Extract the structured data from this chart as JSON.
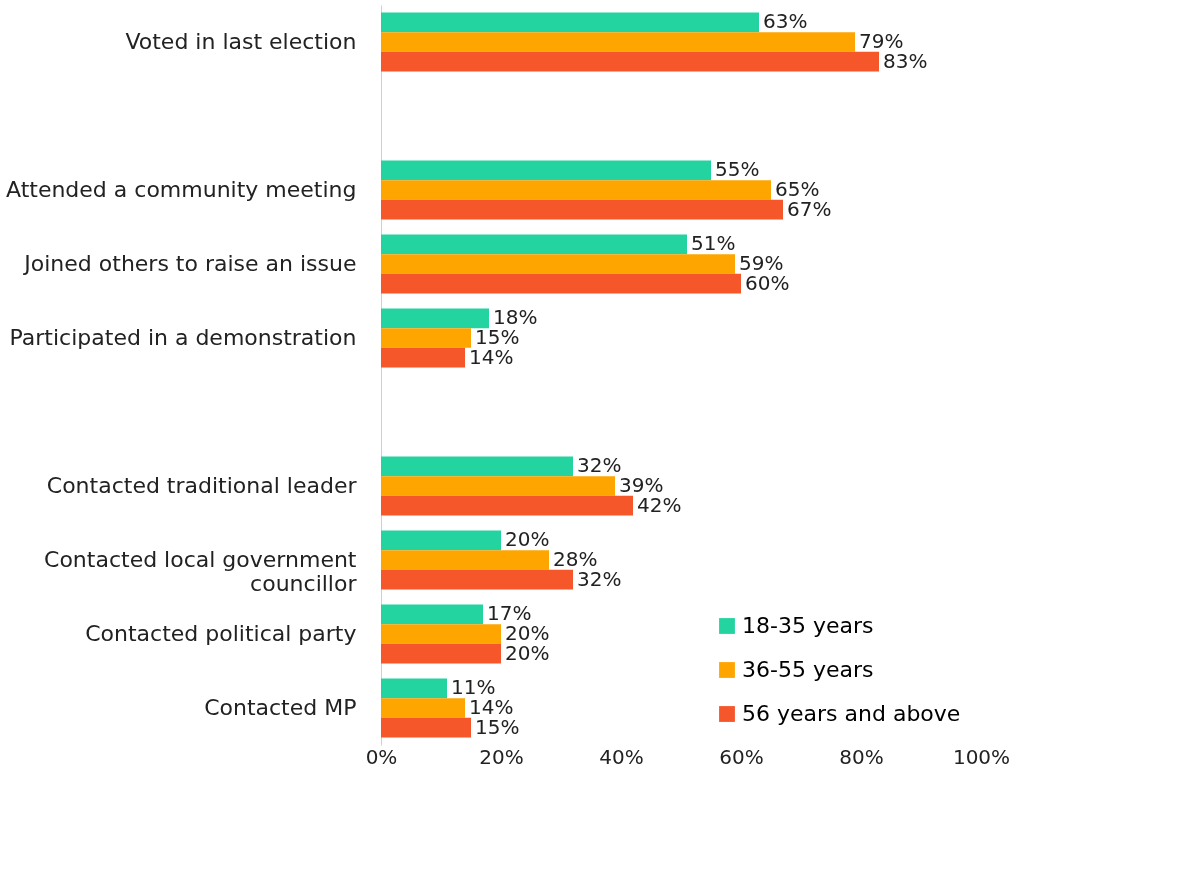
{
  "chart_data": {
    "type": "bar",
    "orientation": "horizontal",
    "categories": [
      "Voted in last election",
      null,
      "Attended a community meeting",
      "Joined others to raise an issue",
      "Participated in a demonstration",
      null,
      "Contacted traditional leader",
      "Contacted local government councillor",
      "Contacted political party",
      "Contacted MP"
    ],
    "series": [
      {
        "name": "18-35 years",
        "color": "#23d3a0",
        "values": [
          63,
          null,
          55,
          51,
          18,
          null,
          32,
          20,
          17,
          11
        ],
        "value_labels": [
          "63%",
          null,
          "55%",
          "51%",
          "18%",
          null,
          "32%",
          "20%",
          "17%",
          "11%"
        ]
      },
      {
        "name": "36-55 years",
        "color": "#ffa500",
        "values": [
          79,
          null,
          65,
          59,
          15,
          null,
          39,
          28,
          20,
          14
        ],
        "value_labels": [
          "79%",
          null,
          "65%",
          "59%",
          "15%",
          null,
          "39%",
          "28%",
          "20%",
          "14%"
        ]
      },
      {
        "name": "56 years and above",
        "color": "#f5562a",
        "values": [
          83,
          null,
          67,
          60,
          14,
          null,
          42,
          32,
          20,
          15
        ],
        "value_labels": [
          "83%",
          null,
          "67%",
          "60%",
          "14%",
          null,
          "42%",
          "32%",
          "20%",
          "15%"
        ]
      }
    ],
    "xlim": [
      0,
      100
    ],
    "xticks": [
      {
        "value": 0,
        "label": "0%"
      },
      {
        "value": 20,
        "label": "20%"
      },
      {
        "value": 40,
        "label": "40%"
      },
      {
        "value": 60,
        "label": "60%"
      },
      {
        "value": 80,
        "label": "80%"
      },
      {
        "value": 100,
        "label": "100%"
      }
    ],
    "legend": "bottom right",
    "grid": false
  }
}
